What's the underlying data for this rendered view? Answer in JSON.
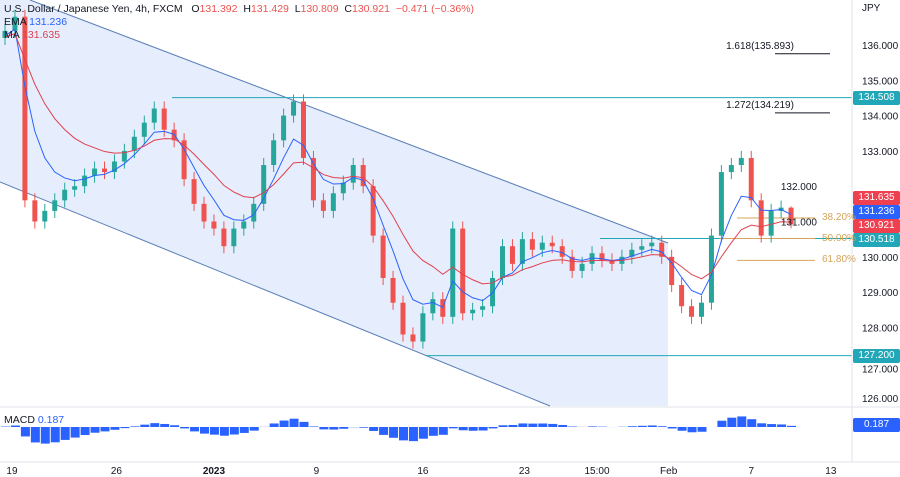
{
  "header": {
    "symbol": "U.S. Dollar / Japanese Yen, 4h, FXCM",
    "o_label": "O",
    "o": "131.392",
    "h_label": "H",
    "h": "131.429",
    "l_label": "L",
    "l": "130.809",
    "c_label": "C",
    "c": "130.921",
    "change": "−0.471 (−0.36%)"
  },
  "indicators": {
    "ema_label": "EMA",
    "ema": "131.236",
    "ma_label": "MA",
    "ma": "131.635",
    "macd_label": "MACD",
    "macd": "0.187"
  },
  "currency": "JPY",
  "colors": {
    "up": "#26a69a",
    "down": "#ef5350",
    "ema": "#2962ff",
    "ma": "#e0404f",
    "channel": "#dfe8fb",
    "level": "#22a7b8",
    "fib": "#d4a55a"
  },
  "tags": [
    {
      "value": "134.508",
      "color": "#22a7b8",
      "price": 134.508
    },
    {
      "value": "131.635",
      "color": "#ef4050",
      "price": 131.635
    },
    {
      "value": "131.236",
      "color": "#2962ff",
      "price": 131.236
    },
    {
      "value": "130.921",
      "color": "#ef4050",
      "price": 130.921
    },
    {
      "value": "130.518",
      "color": "#22a7b8",
      "price": 130.518
    },
    {
      "value": "127.200",
      "color": "#22a7b8",
      "price": 127.2
    }
  ],
  "macd_tag": {
    "value": "0.187",
    "color": "#2962ff"
  },
  "fib": [
    {
      "label": "38.20%",
      "price": 131.1
    },
    {
      "label": "50.00%",
      "price": 130.518
    },
    {
      "label": "61.80%",
      "price": 129.9
    }
  ],
  "extensions": [
    {
      "label": "1.618(135.893)",
      "price": 135.893
    },
    {
      "label": "1.272(134.219)",
      "price": 134.219
    }
  ],
  "chart_data": {
    "type": "candlestick",
    "title": "U.S. Dollar / Japanese Yen, 4h, FXCM",
    "ylim": [
      125.7,
      137.2
    ],
    "y_ticks": [
      126,
      127,
      128,
      129,
      130,
      131,
      132,
      133,
      134,
      135,
      136
    ],
    "y_tick_labels": [
      "126.000",
      "127.000",
      "128.000",
      "129.000",
      "130.000",
      "131.000",
      "132.000",
      "133.000",
      "134.000",
      "135.000",
      "136.000"
    ],
    "x_ticks": [
      {
        "label": "19",
        "index": 0.7
      },
      {
        "label": "26",
        "index": 11.2
      },
      {
        "label": "2023",
        "index": 21
      },
      {
        "label": "9",
        "index": 31.3
      },
      {
        "label": "16",
        "index": 42
      },
      {
        "label": "23",
        "index": 52.2
      },
      {
        "label": "15:00",
        "index": 59.5
      },
      {
        "label": "Feb",
        "index": 66.7
      },
      {
        "label": "7",
        "index": 75
      },
      {
        "label": "13",
        "index": 83
      }
    ],
    "close": [
      136.2,
      136.4,
      136.8,
      131.6,
      131.0,
      131.3,
      131.6,
      131.9,
      132.0,
      132.3,
      132.5,
      132.4,
      132.7,
      133.0,
      133.4,
      133.8,
      134.2,
      133.6,
      133.3,
      132.2,
      131.5,
      131.0,
      130.8,
      130.3,
      130.8,
      131.0,
      131.5,
      132.6,
      133.3,
      134.0,
      134.4,
      132.8,
      131.6,
      131.3,
      131.8,
      132.1,
      132.6,
      132.0,
      130.6,
      129.4,
      128.7,
      127.8,
      127.6,
      128.4,
      128.8,
      128.3,
      130.8,
      128.4,
      128.5,
      128.6,
      129.4,
      130.3,
      129.8,
      130.5,
      130.2,
      130.4,
      130.3,
      130.0,
      129.6,
      129.8,
      130.1,
      129.9,
      129.8,
      130.0,
      130.2,
      130.3,
      130.4,
      130.0,
      129.2,
      128.6,
      128.3,
      128.7,
      130.6,
      132.4,
      132.6,
      132.8,
      131.6,
      130.6,
      131.3,
      131.392,
      130.921
    ],
    "last_candle": {
      "open": 131.392,
      "high": 131.429,
      "low": 130.809,
      "close": 130.921
    }
  }
}
